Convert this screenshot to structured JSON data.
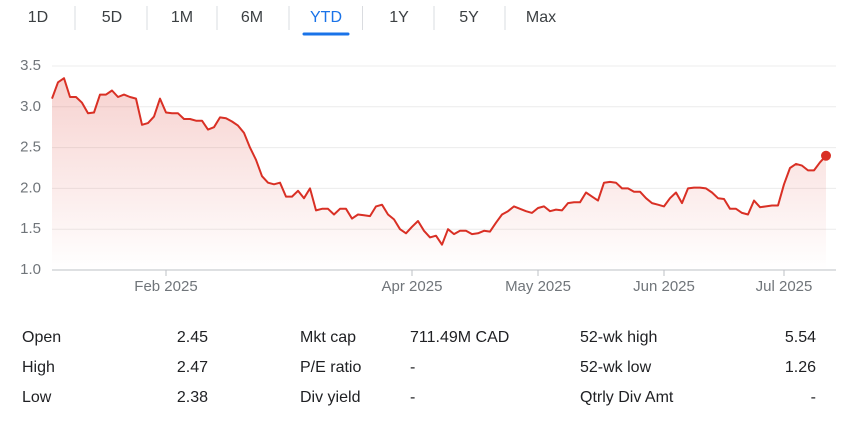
{
  "tabs": [
    "1D",
    "5D",
    "1M",
    "6M",
    "YTD",
    "1Y",
    "5Y",
    "Max"
  ],
  "selected_tab": 4,
  "chart_data": {
    "type": "line",
    "color": "#d93025",
    "grid": true,
    "x": [
      0,
      1,
      2,
      3,
      4,
      5,
      6,
      7,
      8,
      9,
      10,
      11,
      12,
      13,
      14,
      15,
      16,
      17,
      18,
      19,
      20,
      21,
      22,
      23,
      24,
      25,
      26,
      27,
      28,
      29,
      30,
      31,
      32,
      33,
      34,
      35,
      36,
      37,
      38,
      39,
      40,
      41,
      42,
      43,
      44,
      45,
      46,
      47,
      48,
      49,
      50,
      51,
      52,
      53,
      54,
      55,
      56,
      57,
      58,
      59,
      60,
      61,
      62,
      63,
      64,
      65,
      66,
      67,
      68,
      69,
      70,
      71,
      72,
      73,
      74,
      75,
      76,
      77,
      78,
      79,
      80,
      81,
      82,
      83,
      84,
      85,
      86,
      87,
      88,
      89,
      90,
      91,
      92,
      93,
      94,
      95,
      96,
      97,
      98,
      99,
      100,
      101,
      102,
      103,
      104,
      105,
      106,
      107,
      108,
      109,
      110,
      111,
      112,
      113,
      114,
      115,
      116,
      117,
      118,
      119,
      120,
      121,
      122,
      123,
      124,
      125,
      126,
      127,
      128,
      129
    ],
    "values": [
      3.1,
      3.3,
      3.35,
      3.12,
      3.12,
      3.05,
      2.92,
      2.93,
      3.15,
      3.15,
      3.2,
      3.12,
      3.15,
      3.12,
      3.1,
      2.78,
      2.8,
      2.88,
      3.1,
      2.93,
      2.92,
      2.92,
      2.85,
      2.85,
      2.83,
      2.83,
      2.72,
      2.75,
      2.87,
      2.86,
      2.82,
      2.77,
      2.68,
      2.5,
      2.35,
      2.15,
      2.07,
      2.05,
      2.07,
      1.9,
      1.9,
      1.97,
      1.88,
      2.0,
      1.73,
      1.75,
      1.75,
      1.68,
      1.75,
      1.75,
      1.63,
      1.68,
      1.67,
      1.66,
      1.78,
      1.8,
      1.68,
      1.62,
      1.5,
      1.45,
      1.53,
      1.6,
      1.48,
      1.4,
      1.42,
      1.31,
      1.5,
      1.44,
      1.48,
      1.48,
      1.44,
      1.45,
      1.48,
      1.47,
      1.58,
      1.68,
      1.72,
      1.78,
      1.75,
      1.72,
      1.7,
      1.76,
      1.78,
      1.72,
      1.74,
      1.73,
      1.82,
      1.83,
      1.83,
      1.95,
      1.9,
      1.85,
      2.07,
      2.08,
      2.07,
      2.0,
      2.0,
      1.96,
      1.96,
      1.88,
      1.82,
      1.8,
      1.78,
      1.88,
      1.95,
      1.82,
      2.0,
      2.01,
      2.01,
      2.0,
      1.95,
      1.88,
      1.87,
      1.75,
      1.75,
      1.7,
      1.68,
      1.85,
      1.77,
      1.78,
      1.79,
      1.79,
      2.05,
      2.25,
      2.3,
      2.28,
      2.22,
      2.22,
      2.32,
      2.4
    ],
    "xlim": [
      0,
      130
    ],
    "xticks": [
      {
        "value": 19,
        "label": "Feb 2025"
      },
      {
        "value": 60,
        "label": "Apr 2025"
      },
      {
        "value": 81,
        "label": "May 2025"
      },
      {
        "value": 102,
        "label": "Jun 2025"
      },
      {
        "value": 122,
        "label": "Jul 2025"
      }
    ],
    "ylim": [
      1.0,
      3.5
    ],
    "yticks": [
      {
        "value": 1.0,
        "label": "1.0"
      },
      1.5,
      {
        "value": 2.0,
        "label": "2.0"
      },
      2.5,
      {
        "value": 3.0,
        "label": "3.0"
      },
      3.5
    ]
  },
  "stats": [
    [
      [
        "Open",
        "2.45"
      ],
      [
        "Mkt cap",
        "711.49M CAD"
      ],
      [
        "52-wk high",
        "5.54"
      ]
    ],
    [
      [
        "High",
        "2.47"
      ],
      [
        "P/E ratio",
        "-"
      ],
      [
        "52-wk low",
        "1.26"
      ]
    ],
    [
      [
        "Low",
        "2.38"
      ],
      [
        "Div yield",
        "-"
      ],
      [
        "Qtrly Div Amt",
        "-"
      ]
    ]
  ]
}
